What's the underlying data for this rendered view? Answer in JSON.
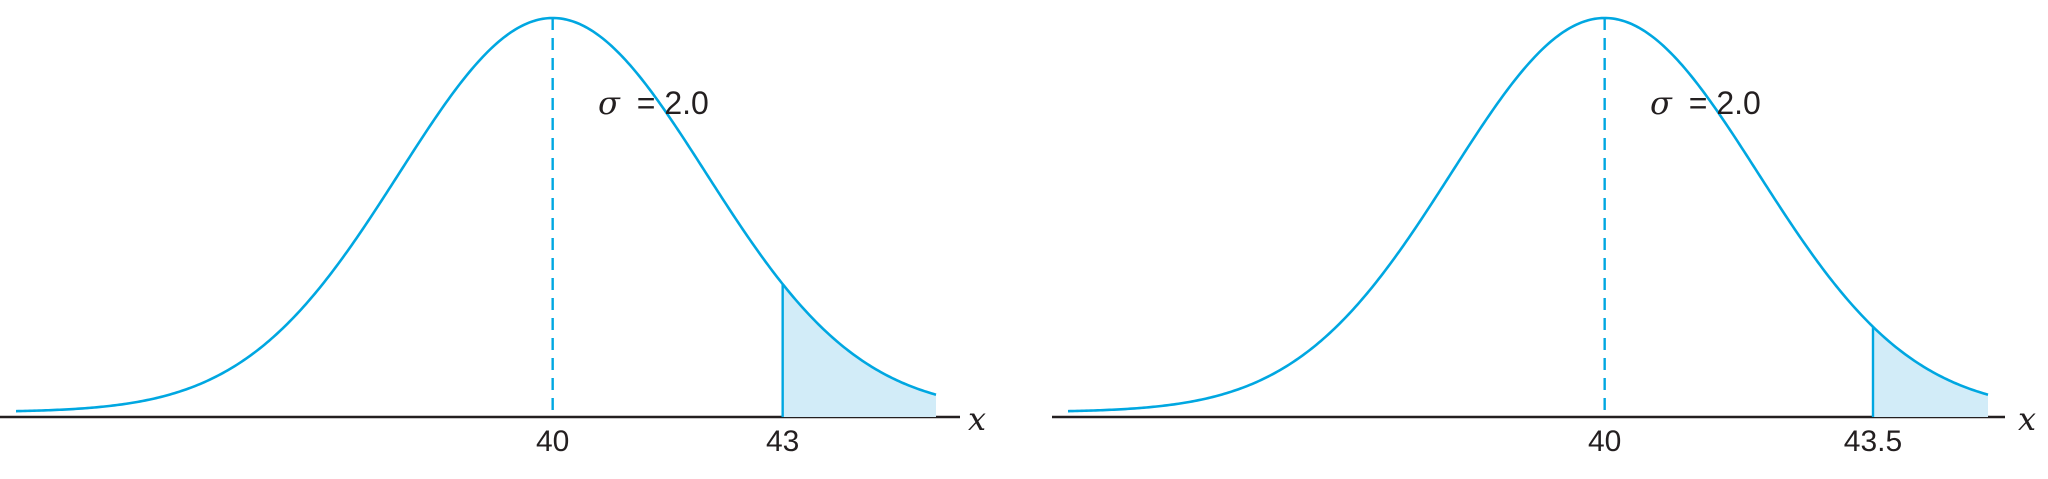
{
  "chart_data": [
    {
      "type": "area",
      "distribution": "normal",
      "mean": 40,
      "sigma": 2.0,
      "sigma_label": "σ = 2.0",
      "sigma_symbol": "σ",
      "sigma_value_text": "= 2.0",
      "x_label": "x",
      "xlim": [
        33,
        45
      ],
      "tick_labels": [
        {
          "value": 40,
          "label": "40"
        },
        {
          "value": 43,
          "label": "43"
        }
      ],
      "shaded_region": {
        "from": 43,
        "to": 45,
        "side": "right-tail"
      },
      "colors": {
        "curve": "#00a7e1",
        "shade": "#d2ecf8",
        "axis": "#231f20"
      }
    },
    {
      "type": "area",
      "distribution": "normal",
      "mean": 40,
      "sigma": 2.0,
      "sigma_label": "σ = 2.0",
      "sigma_symbol": "σ",
      "sigma_value_text": "= 2.0",
      "x_label": "x",
      "xlim": [
        33,
        45
      ],
      "tick_labels": [
        {
          "value": 40,
          "label": "40"
        },
        {
          "value": 43.5,
          "label": "43.5"
        }
      ],
      "shaded_region": {
        "from": 43.5,
        "to": 45,
        "side": "right-tail"
      },
      "colors": {
        "curve": "#00a7e1",
        "shade": "#d2ecf8",
        "axis": "#231f20"
      }
    }
  ]
}
